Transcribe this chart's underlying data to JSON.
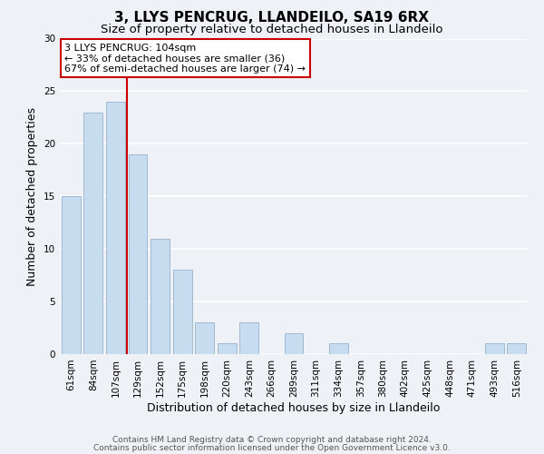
{
  "title": "3, LLYS PENCRUG, LLANDEILO, SA19 6RX",
  "subtitle": "Size of property relative to detached houses in Llandeilo",
  "xlabel": "Distribution of detached houses by size in Llandeilo",
  "ylabel": "Number of detached properties",
  "bar_labels": [
    "61sqm",
    "84sqm",
    "107sqm",
    "129sqm",
    "152sqm",
    "175sqm",
    "198sqm",
    "220sqm",
    "243sqm",
    "266sqm",
    "289sqm",
    "311sqm",
    "334sqm",
    "357sqm",
    "380sqm",
    "402sqm",
    "425sqm",
    "448sqm",
    "471sqm",
    "493sqm",
    "516sqm"
  ],
  "bar_values": [
    15,
    23,
    24,
    19,
    11,
    8,
    3,
    1,
    3,
    0,
    2,
    0,
    1,
    0,
    0,
    0,
    0,
    0,
    0,
    1,
    1
  ],
  "bar_color": "#c8dcf0",
  "bar_edge_color": "#a0b8d0",
  "vline_x_index": 2,
  "vline_color": "#cc0000",
  "annotation_title": "3 LLYS PENCRUG: 104sqm",
  "annotation_line1": "← 33% of detached houses are smaller (36)",
  "annotation_line2": "67% of semi-detached houses are larger (74) →",
  "annotation_box_color": "#ffffff",
  "annotation_box_edgecolor": "#cc0000",
  "ylim": [
    0,
    30
  ],
  "yticks": [
    0,
    5,
    10,
    15,
    20,
    25,
    30
  ],
  "footer1": "Contains HM Land Registry data © Crown copyright and database right 2024.",
  "footer2": "Contains public sector information licensed under the Open Government Licence v3.0.",
  "background_color": "#eef2f7",
  "grid_color": "#ffffff",
  "title_fontsize": 11,
  "subtitle_fontsize": 9.5,
  "axis_label_fontsize": 9,
  "tick_fontsize": 7.5,
  "annotation_fontsize": 8,
  "footer_fontsize": 6.5
}
